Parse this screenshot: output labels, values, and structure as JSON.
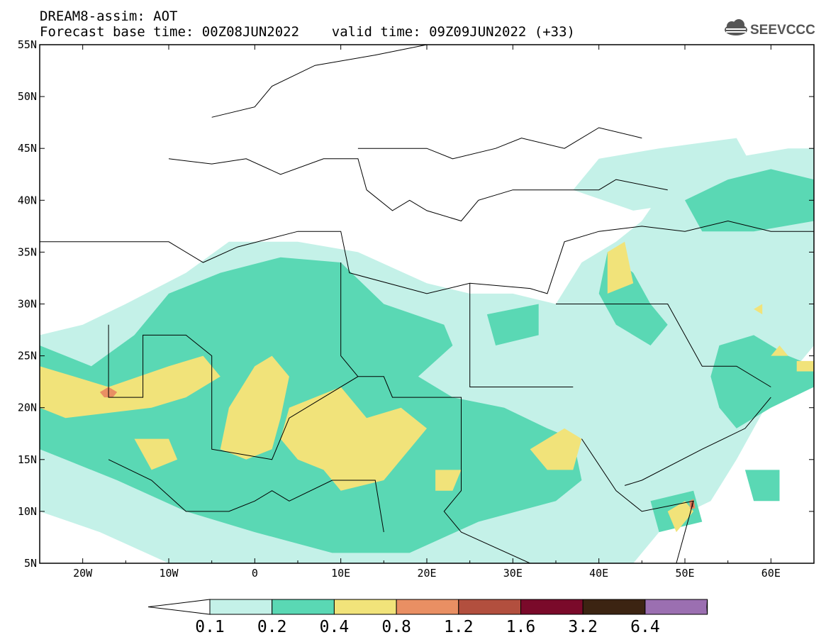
{
  "header": {
    "line1": "DREAM8-assim: AOT",
    "line2": "Forecast base time: 00Z08JUN2022    valid time: 09Z09JUN2022 (+33)",
    "logo_text": "SEEVCCC"
  },
  "chart_data": {
    "type": "heatmap",
    "title": "DREAM8-assim: AOT",
    "subtitle": "Forecast base time: 00Z08JUN2022    valid time: 09Z09JUN2022 (+33)",
    "xlim": [
      -25,
      65
    ],
    "ylim": [
      5,
      55
    ],
    "x_ticks": [
      {
        "value": -20,
        "label": "20W"
      },
      {
        "value": -10,
        "label": "10W"
      },
      {
        "value": 0,
        "label": "0"
      },
      {
        "value": 10,
        "label": "10E"
      },
      {
        "value": 20,
        "label": "20E"
      },
      {
        "value": 30,
        "label": "30E"
      },
      {
        "value": 40,
        "label": "40E"
      },
      {
        "value": 50,
        "label": "50E"
      },
      {
        "value": 60,
        "label": "60E"
      }
    ],
    "y_ticks": [
      {
        "value": 55,
        "label": "55N"
      },
      {
        "value": 50,
        "label": "50N"
      },
      {
        "value": 45,
        "label": "45N"
      },
      {
        "value": 40,
        "label": "40N"
      },
      {
        "value": 35,
        "label": "35N"
      },
      {
        "value": 30,
        "label": "30N"
      },
      {
        "value": 25,
        "label": "25N"
      },
      {
        "value": 20,
        "label": "20N"
      },
      {
        "value": 15,
        "label": "15N"
      },
      {
        "value": 10,
        "label": "10N"
      },
      {
        "value": 5,
        "label": "5N"
      }
    ],
    "levels": [
      "0.1",
      "0.2",
      "0.4",
      "0.8",
      "1.2",
      "1.6",
      "3.2",
      "6.4"
    ],
    "colors": [
      "#ffffff",
      "#c4f1e8",
      "#5ad8b4",
      "#f1e37a",
      "#e98f63",
      "#b24f3e",
      "#7a0a2a",
      "#3c2412",
      "#9b6fb1"
    ],
    "fields": [
      {
        "level": 1,
        "color": "#c4f1e8",
        "polygons": [
          [
            [
              -25,
              27
            ],
            [
              -20,
              28
            ],
            [
              -15,
              30
            ],
            [
              -8,
              33
            ],
            [
              -3,
              36
            ],
            [
              5,
              36
            ],
            [
              12,
              35
            ],
            [
              20,
              32
            ],
            [
              25,
              31
            ],
            [
              30,
              31
            ],
            [
              35,
              30
            ],
            [
              38,
              34
            ],
            [
              42,
              36
            ],
            [
              45,
              38
            ],
            [
              50,
              44
            ],
            [
              55,
              44
            ],
            [
              62,
              45
            ],
            [
              65,
              45
            ],
            [
              65,
              26
            ],
            [
              60,
              21
            ],
            [
              56,
              15
            ],
            [
              53,
              11
            ],
            [
              48,
              9
            ],
            [
              45,
              6
            ],
            [
              44,
              5
            ],
            [
              -10,
              5
            ],
            [
              -18,
              8
            ],
            [
              -25,
              10
            ]
          ],
          [
            [
              37,
              41
            ],
            [
              40,
              44
            ],
            [
              47,
              45
            ],
            [
              56,
              46
            ],
            [
              58,
              43
            ],
            [
              52,
              40
            ],
            [
              44,
              39
            ]
          ]
        ]
      },
      {
        "level": 2,
        "color": "#5ad8b4",
        "polygons": [
          [
            [
              -25,
              26
            ],
            [
              -19,
              24
            ],
            [
              -14,
              27
            ],
            [
              -10,
              31
            ],
            [
              -4,
              33
            ],
            [
              3,
              34.5
            ],
            [
              10,
              34
            ],
            [
              15,
              30
            ],
            [
              22,
              28
            ],
            [
              23,
              26
            ],
            [
              19,
              23
            ],
            [
              23,
              21
            ],
            [
              29,
              20
            ],
            [
              34,
              18
            ],
            [
              37,
              17
            ],
            [
              38,
              13
            ],
            [
              35,
              11
            ],
            [
              26,
              9
            ],
            [
              18,
              6
            ],
            [
              9,
              6
            ],
            [
              0,
              8
            ],
            [
              -8,
              10
            ],
            [
              -16,
              13
            ],
            [
              -22,
              15
            ],
            [
              -25,
              16
            ]
          ],
          [
            [
              27,
              29
            ],
            [
              33,
              30
            ],
            [
              33,
              27
            ],
            [
              28,
              26
            ]
          ],
          [
            [
              41,
              35
            ],
            [
              44,
              33
            ],
            [
              46,
              30
            ],
            [
              48,
              28
            ],
            [
              46,
              26
            ],
            [
              42,
              28
            ],
            [
              40,
              31
            ]
          ],
          [
            [
              54,
              26
            ],
            [
              58,
              27
            ],
            [
              62,
              25
            ],
            [
              65,
              24
            ],
            [
              65,
              22
            ],
            [
              60,
              20
            ],
            [
              56,
              18
            ],
            [
              54,
              20
            ],
            [
              53,
              23
            ]
          ],
          [
            [
              50,
              40
            ],
            [
              55,
              42
            ],
            [
              60,
              43
            ],
            [
              65,
              42
            ],
            [
              65,
              38
            ],
            [
              58,
              37
            ],
            [
              52,
              37
            ]
          ],
          [
            [
              57,
              14
            ],
            [
              61,
              14
            ],
            [
              61,
              11
            ],
            [
              58,
              11
            ]
          ],
          [
            [
              46,
              11
            ],
            [
              51,
              12
            ],
            [
              52,
              9
            ],
            [
              47,
              8
            ]
          ]
        ]
      },
      {
        "level": 3,
        "color": "#f1e37a",
        "polygons": [
          [
            [
              -25,
              24
            ],
            [
              -21,
              23
            ],
            [
              -17,
              22
            ],
            [
              -10,
              24
            ],
            [
              -6,
              25
            ],
            [
              -4,
              23
            ],
            [
              -8,
              21
            ],
            [
              -12,
              20
            ],
            [
              -17,
              19.5
            ],
            [
              -22,
              19
            ],
            [
              -25,
              20
            ]
          ],
          [
            [
              -3,
              20
            ],
            [
              0,
              24
            ],
            [
              2,
              25
            ],
            [
              4,
              23
            ],
            [
              3,
              19
            ],
            [
              2,
              16
            ],
            [
              -1,
              15
            ],
            [
              -4,
              16
            ]
          ],
          [
            [
              4,
              20
            ],
            [
              10,
              22
            ],
            [
              13,
              19
            ],
            [
              17,
              20
            ],
            [
              20,
              18
            ],
            [
              18,
              16
            ],
            [
              15,
              13
            ],
            [
              10,
              12
            ],
            [
              8,
              14
            ],
            [
              5,
              15
            ],
            [
              3,
              17
            ]
          ],
          [
            [
              -14,
              17
            ],
            [
              -10,
              17
            ],
            [
              -9,
              15
            ],
            [
              -12,
              14
            ]
          ],
          [
            [
              21,
              14
            ],
            [
              24,
              14
            ],
            [
              23,
              12
            ],
            [
              21,
              12
            ]
          ],
          [
            [
              32,
              16
            ],
            [
              36,
              18
            ],
            [
              38,
              17
            ],
            [
              37,
              14
            ],
            [
              34,
              14
            ]
          ],
          [
            [
              41,
              35
            ],
            [
              43,
              36
            ],
            [
              44,
              32
            ],
            [
              41,
              31
            ]
          ],
          [
            [
              48,
              10
            ],
            [
              50,
              11
            ],
            [
              51,
              10
            ],
            [
              49,
              8
            ]
          ],
          [
            [
              58,
              29.5
            ],
            [
              59,
              30
            ],
            [
              59,
              29
            ]
          ],
          [
            [
              60,
              25
            ],
            [
              61,
              26
            ],
            [
              62,
              25
            ]
          ],
          [
            [
              63,
              24.5
            ],
            [
              65,
              24.5
            ],
            [
              65,
              23.5
            ],
            [
              63,
              23.5
            ]
          ]
        ]
      },
      {
        "level": 4,
        "color": "#e98f63",
        "polygons": [
          [
            [
              -18,
              21.5
            ],
            [
              -17,
              22
            ],
            [
              -16,
              21.5
            ],
            [
              -16.5,
              21
            ],
            [
              -17.5,
              21
            ]
          ],
          [
            [
              50.5,
              11
            ],
            [
              51,
              11.2
            ],
            [
              51.2,
              10.3
            ],
            [
              50.6,
              10.2
            ]
          ]
        ]
      },
      {
        "level": 5,
        "color": "#b24f3e",
        "polygons": [
          [
            [
              50.7,
              10.8
            ],
            [
              51,
              11
            ],
            [
              51,
              10.4
            ],
            [
              50.7,
              10.4
            ]
          ]
        ]
      }
    ],
    "borders": [
      [
        [
          -25,
          36
        ],
        [
          -10,
          36
        ],
        [
          -6,
          34
        ],
        [
          -2,
          35.5
        ],
        [
          5,
          37
        ],
        [
          10,
          37
        ],
        [
          11,
          33
        ],
        [
          20,
          31
        ],
        [
          25,
          32
        ],
        [
          32,
          31.5
        ],
        [
          34,
          31
        ],
        [
          36,
          36
        ],
        [
          40,
          37
        ],
        [
          45,
          37.5
        ],
        [
          50,
          37
        ],
        [
          55,
          38
        ],
        [
          60,
          37
        ],
        [
          65,
          37
        ]
      ],
      [
        [
          -10,
          44
        ],
        [
          -5,
          43.5
        ],
        [
          -1,
          44
        ],
        [
          3,
          42.5
        ],
        [
          8,
          44
        ],
        [
          12,
          44
        ],
        [
          13,
          41
        ],
        [
          16,
          39
        ],
        [
          18,
          40
        ],
        [
          20,
          39
        ],
        [
          24,
          38
        ],
        [
          26,
          40
        ],
        [
          30,
          41
        ],
        [
          40,
          41
        ],
        [
          42,
          42
        ],
        [
          48,
          41
        ]
      ],
      [
        [
          -5,
          48
        ],
        [
          0,
          49
        ],
        [
          2,
          51
        ],
        [
          7,
          53
        ],
        [
          14,
          54
        ],
        [
          20,
          55
        ]
      ],
      [
        [
          12,
          45
        ],
        [
          20,
          45
        ],
        [
          23,
          44
        ],
        [
          28,
          45
        ],
        [
          31,
          46
        ],
        [
          36,
          45
        ],
        [
          40,
          47
        ],
        [
          45,
          46
        ]
      ],
      [
        [
          -17,
          28
        ],
        [
          -17,
          21
        ],
        [
          -13,
          21
        ],
        [
          -13,
          27
        ],
        [
          -8,
          27
        ],
        [
          -5,
          25
        ],
        [
          -5,
          16
        ],
        [
          2,
          15
        ],
        [
          4,
          19
        ],
        [
          12,
          23
        ],
        [
          15,
          23
        ],
        [
          16,
          21
        ],
        [
          24,
          21
        ],
        [
          24,
          12
        ],
        [
          22,
          10
        ],
        [
          24,
          8
        ],
        [
          32,
          5
        ]
      ],
      [
        [
          10,
          34
        ],
        [
          10,
          25
        ],
        [
          12,
          23
        ]
      ],
      [
        [
          25,
          32
        ],
        [
          25,
          22
        ],
        [
          37,
          22
        ]
      ],
      [
        [
          35,
          30
        ],
        [
          40,
          30
        ],
        [
          48,
          30
        ],
        [
          52,
          24
        ],
        [
          56,
          24
        ],
        [
          60,
          22
        ]
      ],
      [
        [
          43,
          12.5
        ],
        [
          45,
          13
        ],
        [
          52,
          16
        ],
        [
          57,
          18
        ],
        [
          60,
          21
        ]
      ],
      [
        [
          38,
          17
        ],
        [
          42,
          12
        ],
        [
          45,
          10
        ],
        [
          51,
          11
        ],
        [
          49,
          5
        ]
      ],
      [
        [
          -17,
          15
        ],
        [
          -12,
          13
        ],
        [
          -8,
          10
        ],
        [
          -3,
          10
        ],
        [
          0,
          11
        ],
        [
          2,
          12
        ],
        [
          4,
          11
        ],
        [
          9,
          13
        ],
        [
          14,
          13
        ],
        [
          15,
          8
        ]
      ]
    ]
  }
}
